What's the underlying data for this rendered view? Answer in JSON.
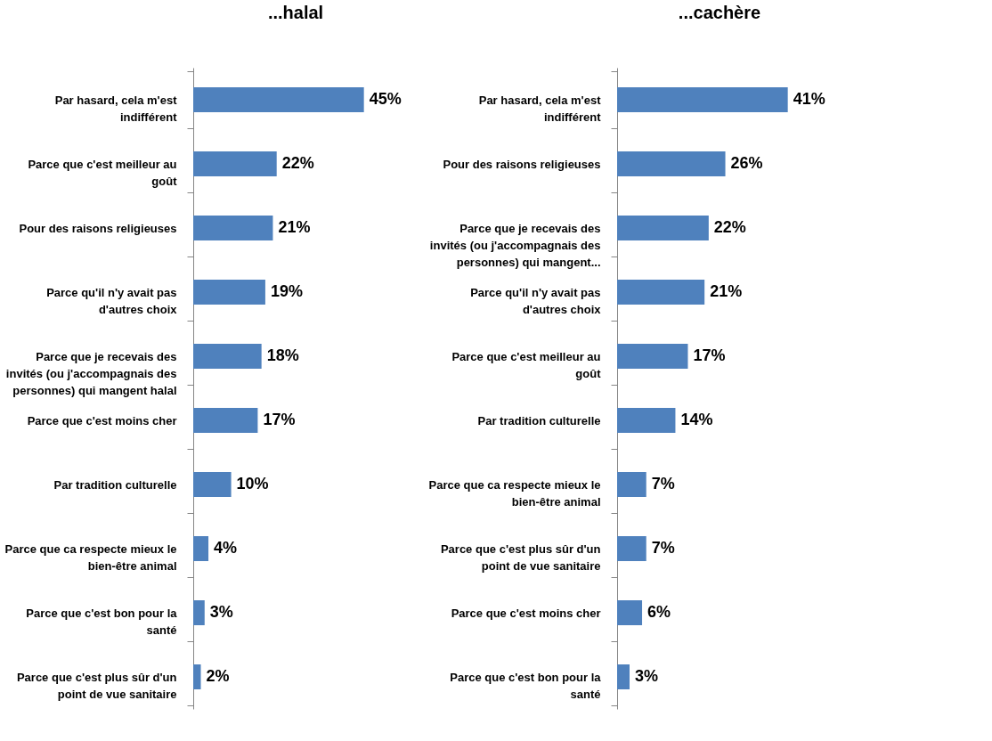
{
  "chart_data": [
    {
      "type": "bar",
      "orientation": "horizontal",
      "title": "...halal",
      "tick_labels": "y",
      "categories": [
        "Par hasard, cela m'est indifférent",
        "Parce que c'est meilleur au goût",
        "Pour des raisons religieuses",
        "Parce qu'il n'y avait pas d'autres choix",
        "Parce que je recevais des invités (ou j'accompagnais des personnes) qui mangent halal",
        "Parce que c'est moins cher",
        "Par tradition culturelle",
        "Parce que ca respecte mieux le bien-être animal",
        "Parce que c'est bon pour la santé",
        "Parce que c'est plus sûr d'un point de vue sanitaire"
      ],
      "series": [
        {
          "color": "#4f81bd",
          "values": [
            45,
            22,
            21,
            19,
            18,
            17,
            10,
            4,
            3,
            2
          ],
          "value_labels": [
            "45%",
            "22%",
            "21%",
            "19%",
            "18%",
            "17%",
            "10%",
            "4%",
            "3%",
            "2%"
          ]
        }
      ]
    },
    {
      "type": "bar",
      "orientation": "horizontal",
      "title": "...cachère",
      "tick_labels": "y",
      "categories": [
        "Par hasard, cela m'est indifférent",
        "Pour des raisons religieuses",
        "Parce que je recevais des invités (ou j'accompagnais des personnes) qui mangent...",
        "Parce qu'il n'y avait pas d'autres choix",
        "Parce que c'est meilleur au goût",
        "Par tradition culturelle",
        "Parce que ca respecte mieux le bien-être animal",
        "Parce que c'est plus sûr d'un point de vue sanitaire",
        "Parce que c'est moins cher",
        "Parce que c'est bon pour la santé"
      ],
      "series": [
        {
          "color": "#4f81bd",
          "values": [
            41,
            26,
            22,
            21,
            17,
            14,
            7,
            7,
            6,
            3
          ],
          "value_labels": [
            "41%",
            "26%",
            "22%",
            "21%",
            "17%",
            "14%",
            "7%",
            "7%",
            "6%",
            "3%"
          ]
        }
      ]
    }
  ]
}
